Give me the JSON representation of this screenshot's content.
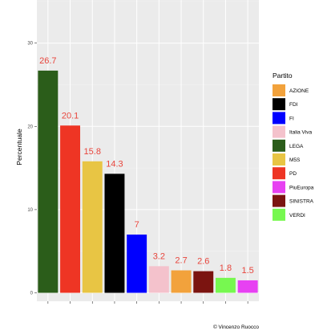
{
  "chart_data": {
    "type": "bar",
    "categories": [
      "LEGA",
      "PD",
      "M5S",
      "FDI",
      "FI",
      "Italia Viva",
      "AZIONE",
      "SINISTRA",
      "VERDI",
      "PiuEuropa"
    ],
    "values": [
      26.7,
      20.1,
      15.8,
      14.3,
      7,
      3.2,
      2.7,
      2.6,
      1.8,
      1.5
    ],
    "value_labels": [
      "26.7",
      "20.1",
      "15.8",
      "14.3",
      "7",
      "3.2",
      "2.7",
      "2.6",
      "1.8",
      "1.5"
    ],
    "bar_colors": [
      "#2b5d1a",
      "#ee3524",
      "#e8c544",
      "#000000",
      "#0000ff",
      "#f4c2cc",
      "#f2a23c",
      "#7b1410",
      "#77f850",
      "#e741f2"
    ],
    "data_label_color": "#e8453c",
    "ylabel": "Percentuale",
    "xlabel": "",
    "x_tick_labels_shown": false,
    "ylim": [
      -1,
      35
    ],
    "yticks": [
      0,
      10,
      20,
      30
    ],
    "grid": true,
    "panel_background": "#ebebeb",
    "legend": {
      "title": "Partito",
      "placement": "right",
      "entries": [
        {
          "label": "AZIONE",
          "color": "#f2a23c"
        },
        {
          "label": "FDI",
          "color": "#000000"
        },
        {
          "label": "FI",
          "color": "#0000ff"
        },
        {
          "label": "Italia Viva",
          "color": "#f4c2cc"
        },
        {
          "label": "LEGA",
          "color": "#2b5d1a"
        },
        {
          "label": "M5S",
          "color": "#e8c544"
        },
        {
          "label": "PD",
          "color": "#ee3524"
        },
        {
          "label": "PiuEuropa",
          "color": "#e741f2"
        },
        {
          "label": "SINISTRA",
          "color": "#7b1410"
        },
        {
          "label": "VERDI",
          "color": "#77f850"
        }
      ]
    },
    "caption": "© Vincenzo Ruocco"
  }
}
